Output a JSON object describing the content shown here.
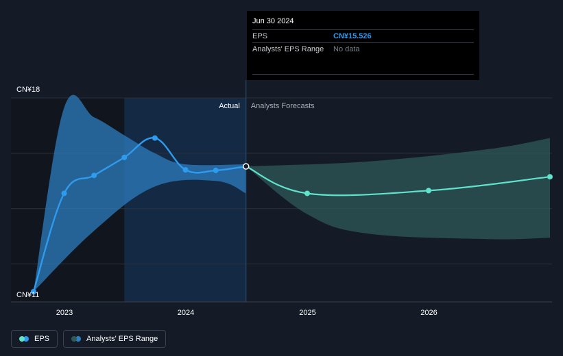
{
  "chart_data": {
    "type": "line",
    "y_labels": [
      "CN¥18",
      "CN¥11"
    ],
    "ylim": [
      11,
      18
    ],
    "x_ticks": [
      "2023",
      "2024",
      "2025",
      "2026"
    ],
    "divider_labels": {
      "actual": "Actual",
      "forecast": "Analysts Forecasts"
    },
    "series": [
      {
        "name": "EPS",
        "segment": "actual",
        "points": [
          {
            "x": "2022-09-30",
            "y": 11.0
          },
          {
            "x": "2022-12-31",
            "y": 14.55
          },
          {
            "x": "2023-03-31",
            "y": 15.2
          },
          {
            "x": "2023-06-30",
            "y": 15.85
          },
          {
            "x": "2023-09-30",
            "y": 16.55
          },
          {
            "x": "2023-12-31",
            "y": 15.4
          },
          {
            "x": "2024-03-31",
            "y": 15.38
          },
          {
            "x": "2024-06-30",
            "y": 15.526
          }
        ]
      },
      {
        "name": "EPS",
        "segment": "forecast",
        "points": [
          {
            "x": "2024-06-30",
            "y": 15.526
          },
          {
            "x": "2024-12-31",
            "y": 14.55
          },
          {
            "x": "2025-12-31",
            "y": 14.65
          },
          {
            "x": "2026-12-31",
            "y": 15.15
          }
        ]
      }
    ],
    "range_actual": {
      "name": "Analysts' EPS Range",
      "upper": [
        {
          "x": "2022-09-30",
          "y": 11.0
        },
        {
          "x": "2022-12-31",
          "y": 17.65
        },
        {
          "x": "2023-03-31",
          "y": 17.3
        },
        {
          "x": "2023-06-30",
          "y": 16.65
        },
        {
          "x": "2023-09-30",
          "y": 16.0
        },
        {
          "x": "2023-12-31",
          "y": 15.6
        },
        {
          "x": "2024-06-30",
          "y": 15.6
        }
      ],
      "lower": [
        {
          "x": "2022-09-30",
          "y": 11.0
        },
        {
          "x": "2023-03-31",
          "y": 13.2
        },
        {
          "x": "2023-09-30",
          "y": 14.8
        },
        {
          "x": "2024-03-31",
          "y": 15.0
        },
        {
          "x": "2024-06-30",
          "y": 14.55
        }
      ]
    },
    "range_forecast": {
      "name": "Analysts' EPS Range",
      "upper": [
        {
          "x": "2024-06-30",
          "y": 15.526
        },
        {
          "x": "2025-06-30",
          "y": 15.7
        },
        {
          "x": "2026-06-30",
          "y": 16.15
        },
        {
          "x": "2026-12-31",
          "y": 16.55
        }
      ],
      "lower": [
        {
          "x": "2024-06-30",
          "y": 15.526
        },
        {
          "x": "2024-12-31",
          "y": 13.8
        },
        {
          "x": "2025-06-30",
          "y": 13.1
        },
        {
          "x": "2026-06-30",
          "y": 12.9
        },
        {
          "x": "2026-12-31",
          "y": 12.95
        }
      ]
    },
    "highlight_band": {
      "from": "2023-06-30",
      "to": "2024-06-30"
    },
    "colors": {
      "eps_actual": "#2e9bef",
      "eps_forecast": "#5fe3cc",
      "range_actual": "#2e7fc4",
      "range_forecast": "#2f5a59",
      "background": "#151b26"
    },
    "grid": true
  },
  "tooltip": {
    "date": "Jun 30 2024",
    "rows": [
      {
        "key": "EPS",
        "value": "CN¥15.526"
      },
      {
        "key": "Analysts' EPS Range",
        "value": "No data"
      }
    ]
  },
  "legend": {
    "items": [
      {
        "label": "EPS",
        "color_a": "#5fe3cc",
        "color_b": "#2e9bef"
      },
      {
        "label": "Analysts' EPS Range",
        "color_a": "#2f5a59",
        "color_b": "#2e7fc4"
      }
    ]
  }
}
